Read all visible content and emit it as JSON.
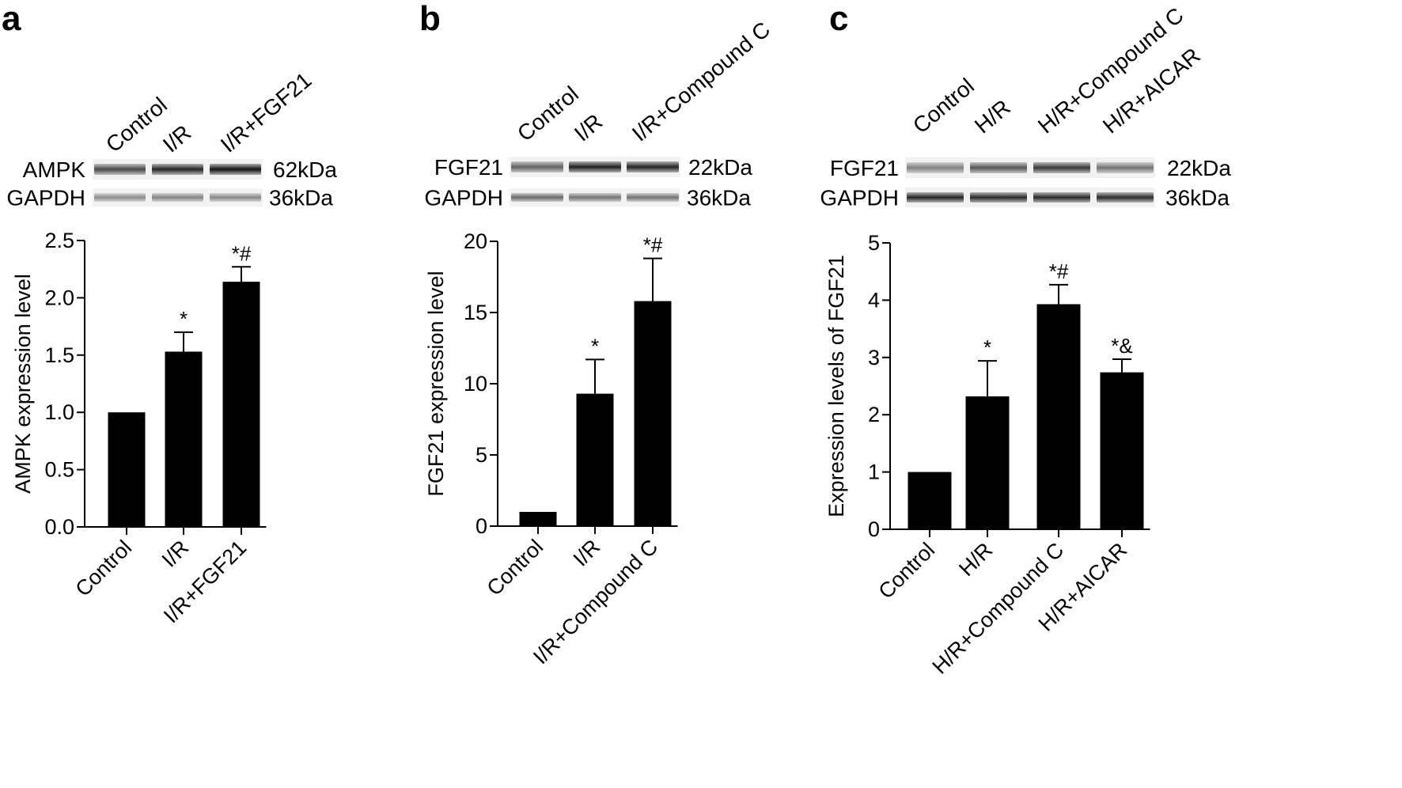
{
  "chart_data": [
    {
      "panel": "a",
      "type": "bar",
      "blot": {
        "lanes": [
          "Control",
          "I/R",
          "I/R+FGF21"
        ],
        "bands": [
          {
            "name": "AMPK",
            "kda": "62kDa",
            "intensity": [
              0.72,
              0.86,
              0.93
            ]
          },
          {
            "name": "GAPDH",
            "kda": "36kDa",
            "intensity": [
              0.45,
              0.48,
              0.47
            ]
          }
        ]
      },
      "categories": [
        "Control",
        "I/R",
        "I/R+FGF21"
      ],
      "values": [
        1.0,
        1.53,
        2.14
      ],
      "errors": [
        0,
        0.17,
        0.13
      ],
      "significance": [
        "",
        "*",
        "*#"
      ],
      "ylabel": "AMPK expression level",
      "ylim": [
        0,
        2.5
      ],
      "yticks": [
        "0.0",
        "0.5",
        "1.0",
        "1.5",
        "2.0",
        "2.5"
      ]
    },
    {
      "panel": "b",
      "type": "bar",
      "blot": {
        "lanes": [
          "Control",
          "I/R",
          "I/R+Compound C"
        ],
        "bands": [
          {
            "name": "FGF21",
            "kda": "22kDa",
            "intensity": [
              0.62,
              0.88,
              0.86
            ]
          },
          {
            "name": "GAPDH",
            "kda": "36kDa",
            "intensity": [
              0.58,
              0.55,
              0.55
            ]
          }
        ]
      },
      "categories": [
        "Control",
        "I/R",
        "I/R+Compound C"
      ],
      "values": [
        1.0,
        9.3,
        15.8
      ],
      "errors": [
        0,
        2.4,
        3.0
      ],
      "significance": [
        "",
        "*",
        "*#"
      ],
      "ylabel": "FGF21 expression level",
      "ylim": [
        0,
        20
      ],
      "yticks": [
        "0",
        "5",
        "10",
        "15",
        "20"
      ]
    },
    {
      "panel": "c",
      "type": "bar",
      "blot": {
        "lanes": [
          "Control",
          "H/R",
          "H/R+Compound C",
          "H/R+AICAR"
        ],
        "bands": [
          {
            "name": "FGF21",
            "kda": "22kDa",
            "intensity": [
              0.5,
              0.66,
              0.78,
              0.54
            ]
          },
          {
            "name": "GAPDH",
            "kda": "36kDa",
            "intensity": [
              0.85,
              0.84,
              0.84,
              0.83
            ]
          }
        ]
      },
      "categories": [
        "Control",
        "H/R",
        "H/R+Compound C",
        "H/R+AICAR"
      ],
      "values": [
        1.0,
        2.32,
        3.93,
        2.74
      ],
      "errors": [
        0,
        0.62,
        0.34,
        0.23
      ],
      "significance": [
        "",
        "*",
        "*#",
        "*&"
      ],
      "ylabel": "Expression levels of FGF21",
      "ylim": [
        0,
        5
      ],
      "yticks": [
        "0",
        "1",
        "2",
        "3",
        "4",
        "5"
      ]
    }
  ],
  "colors": {
    "bar": "#000000",
    "axis": "#000000",
    "band_light": "#e6e6e6",
    "band_dark": "#1c1c1c"
  }
}
